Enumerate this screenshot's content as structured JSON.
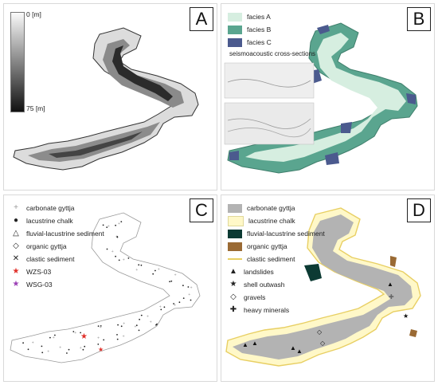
{
  "panels": {
    "a": {
      "letter": "A",
      "depth_top": "0 [m]",
      "depth_bottom": "75 [m]"
    },
    "b": {
      "letter": "B",
      "legend": [
        {
          "label": "facies A",
          "color": "#d6eee0"
        },
        {
          "label": "facies B",
          "color": "#5aa58f"
        },
        {
          "label": "facies C",
          "color": "#4b5a8e"
        }
      ],
      "seismo_title": "seismoacoustic cross-sections"
    },
    "c": {
      "letter": "C",
      "legend": [
        {
          "label": "carbonate gyttja",
          "symbol": "+",
          "color": "#999999"
        },
        {
          "label": "lacustrine chalk",
          "symbol": "●",
          "color": "#111111"
        },
        {
          "label": "fluvial-lacustrine sediment",
          "symbol": "△",
          "color": "#111111"
        },
        {
          "label": "organic gyttja",
          "symbol": "◇",
          "color": "#111111"
        },
        {
          "label": "clastic sediment",
          "symbol": "✕",
          "color": "#111111"
        },
        {
          "label": "WZS-03",
          "symbol": "★",
          "color": "#e0302a"
        },
        {
          "label": "WSG-03",
          "symbol": "★",
          "color": "#9b3fb5"
        }
      ]
    },
    "d": {
      "letter": "D",
      "legend": [
        {
          "label": "carbonate gyttja",
          "kind": "swatch",
          "color": "#b3b3b3"
        },
        {
          "label": "lacustrine chalk",
          "kind": "swatch",
          "color": "#fff8c8"
        },
        {
          "label": "fluvial-lacustrine sediment",
          "kind": "swatch",
          "color": "#0c3a33"
        },
        {
          "label": "organic gyttja",
          "kind": "swatch",
          "color": "#9a6a34"
        },
        {
          "label": "clastic sediment",
          "kind": "line",
          "color": "#e8cf63"
        },
        {
          "label": "landslides",
          "kind": "symbol",
          "symbol": "▲",
          "color": "#111111"
        },
        {
          "label": "shell outwash",
          "kind": "symbol",
          "symbol": "★",
          "color": "#111111"
        },
        {
          "label": "gravels",
          "kind": "symbol",
          "symbol": "◇",
          "color": "#111111"
        },
        {
          "label": "heavy minerals",
          "kind": "symbol",
          "symbol": "✚",
          "color": "#111111"
        }
      ]
    }
  }
}
